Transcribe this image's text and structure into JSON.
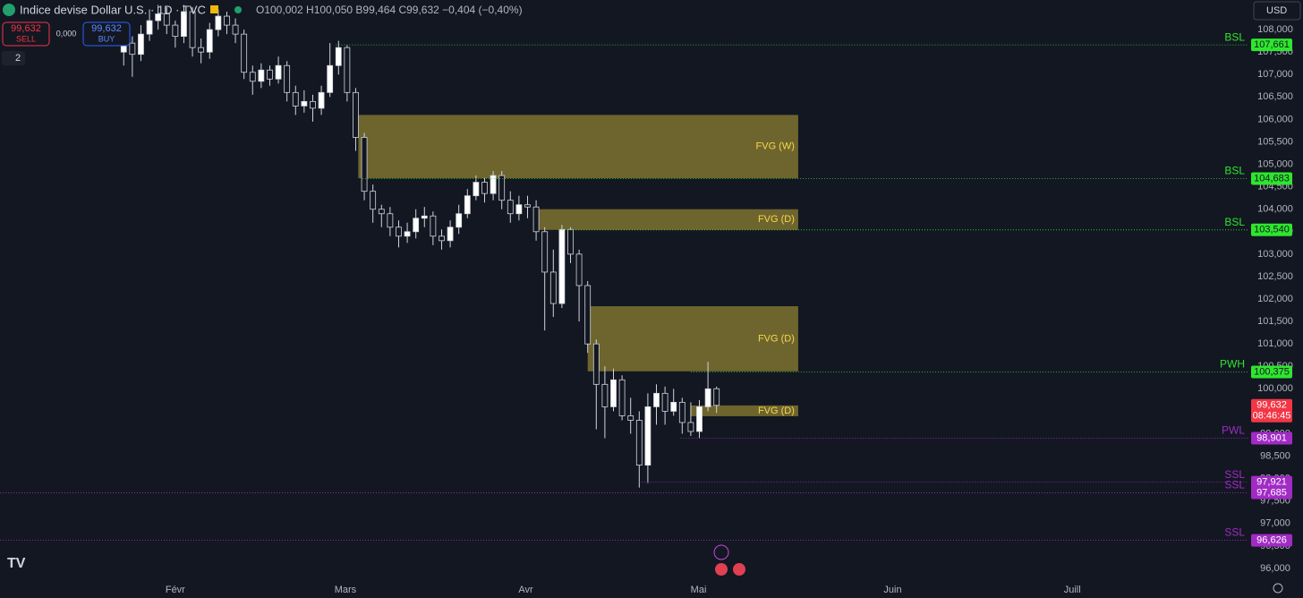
{
  "header": {
    "symbol": "Indice devise Dollar U.S. · 1D · TVC",
    "ohlc": "O100,002 H100,050 B99,464 C99,632 −0,404 (−0,40%)",
    "sell_price": "99,632",
    "sell": "SELL",
    "spread": "0,000",
    "buy_price": "99,632",
    "buy": "BUY",
    "count": "2",
    "currency": "USD",
    "clock": "08:46:45"
  },
  "chart_data": {
    "type": "candlestick",
    "up_color": "#ffffff",
    "down_color": "#131722",
    "xlim": [
      -14.4,
      130.9
    ],
    "ylim": [
      95.74,
      108.66
    ],
    "xticks": [
      {
        "value": 6,
        "label": "Févr"
      },
      {
        "value": 25.8,
        "label": "Mars"
      },
      {
        "value": 46.8,
        "label": "Avr"
      },
      {
        "value": 66.9,
        "label": "Mai"
      },
      {
        "value": 89.5,
        "label": "Juin"
      },
      {
        "value": 110.4,
        "label": "Juill"
      }
    ],
    "yticks": [
      {
        "value": 96,
        "label": "96,000"
      },
      {
        "value": 96.5,
        "label": "96,500"
      },
      {
        "value": 97,
        "label": "97,000"
      },
      {
        "value": 97.5,
        "label": "97,500"
      },
      {
        "value": 98,
        "label": "98,000"
      },
      {
        "value": 98.5,
        "label": "98,500"
      },
      {
        "value": 99,
        "label": "99,000"
      },
      {
        "value": 99.5,
        "label": "99,500"
      },
      {
        "value": 100,
        "label": "100,000"
      },
      {
        "value": 100.5,
        "label": "100,500"
      },
      {
        "value": 101,
        "label": "101,000"
      },
      {
        "value": 101.5,
        "label": "101,500"
      },
      {
        "value": 102,
        "label": "102,000"
      },
      {
        "value": 102.5,
        "label": "102,500"
      },
      {
        "value": 103,
        "label": "103,000"
      },
      {
        "value": 103.5,
        "label": "103,500"
      },
      {
        "value": 104,
        "label": "104,000"
      },
      {
        "value": 104.5,
        "label": "104,500"
      },
      {
        "value": 105,
        "label": "105,000"
      },
      {
        "value": 105.5,
        "label": "105,500"
      },
      {
        "value": 106,
        "label": "106,000"
      },
      {
        "value": 106.5,
        "label": "106,500"
      },
      {
        "value": 107,
        "label": "107,000"
      },
      {
        "value": 107.5,
        "label": "107,500"
      },
      {
        "value": 108,
        "label": "108,000"
      }
    ],
    "open": [
      107.5,
      107.7,
      107.45,
      107.9,
      108.2,
      108.35,
      108.1,
      107.85,
      108.4,
      107.6,
      107.5,
      108.0,
      108.3,
      108.1,
      107.9,
      107.05,
      106.85,
      107.1,
      106.9,
      107.2,
      106.6,
      106.3,
      106.4,
      106.25,
      106.6,
      107.2,
      107.6,
      106.6,
      105.6,
      104.4,
      104.0,
      103.9,
      103.6,
      103.4,
      103.5,
      103.8,
      103.85,
      103.4,
      103.3,
      103.6,
      103.9,
      104.3,
      104.6,
      104.35,
      104.75,
      104.2,
      103.9,
      104.1,
      104.05,
      103.5,
      102.6,
      101.9,
      103.55,
      103.0,
      102.3,
      101.0,
      100.1,
      99.6,
      100.2,
      99.4,
      99.3,
      98.3,
      99.6,
      99.9,
      99.5,
      99.7,
      99.25,
      99.05,
      99.6,
      100.002
    ],
    "high": [
      107.95,
      107.85,
      108.1,
      108.45,
      108.55,
      108.5,
      108.2,
      108.55,
      108.5,
      107.8,
      108.15,
      108.45,
      108.4,
      108.25,
      108.0,
      107.2,
      107.25,
      107.2,
      107.4,
      107.3,
      106.75,
      106.65,
      106.55,
      106.75,
      107.7,
      107.75,
      107.65,
      106.7,
      105.7,
      104.55,
      104.1,
      104.05,
      103.75,
      103.7,
      104.0,
      104.05,
      103.95,
      103.55,
      103.75,
      104.1,
      104.45,
      104.75,
      104.7,
      104.85,
      104.85,
      104.4,
      104.3,
      104.3,
      104.2,
      103.6,
      103.1,
      103.65,
      103.6,
      103.1,
      102.4,
      101.1,
      100.5,
      100.45,
      100.3,
      99.8,
      99.5,
      99.9,
      100.1,
      100.05,
      100.0,
      99.8,
      99.7,
      99.75,
      100.6,
      100.05
    ],
    "low": [
      107.2,
      106.95,
      107.3,
      107.75,
      108.0,
      107.9,
      107.6,
      107.7,
      107.4,
      107.25,
      107.35,
      107.85,
      107.9,
      107.7,
      106.9,
      106.55,
      106.7,
      106.75,
      106.8,
      106.4,
      106.1,
      106.15,
      105.95,
      106.1,
      106.5,
      107.0,
      106.4,
      105.3,
      104.2,
      103.7,
      103.6,
      103.4,
      103.15,
      103.25,
      103.35,
      103.6,
      103.2,
      103.1,
      103.15,
      103.45,
      103.8,
      104.2,
      104.15,
      104.2,
      104.0,
      103.7,
      103.75,
      103.8,
      103.3,
      101.3,
      101.6,
      101.8,
      102.8,
      101.5,
      100.8,
      99.1,
      98.9,
      99.5,
      99.3,
      99.0,
      97.8,
      97.9,
      99.2,
      99.2,
      99.4,
      99.0,
      98.95,
      98.9,
      99.5,
      99.464
    ],
    "close": [
      107.7,
      107.45,
      107.9,
      108.2,
      108.35,
      108.1,
      107.85,
      108.4,
      107.6,
      107.5,
      108.0,
      108.3,
      108.1,
      107.9,
      107.05,
      106.85,
      107.1,
      106.9,
      107.2,
      106.6,
      106.3,
      106.4,
      106.25,
      106.6,
      107.2,
      107.6,
      106.6,
      105.6,
      104.4,
      104.0,
      103.9,
      103.6,
      103.4,
      103.5,
      103.8,
      103.85,
      103.4,
      103.3,
      103.6,
      103.9,
      104.3,
      104.6,
      104.35,
      104.75,
      104.2,
      103.9,
      104.1,
      104.05,
      103.5,
      102.6,
      101.9,
      103.55,
      103.0,
      102.3,
      101.0,
      100.1,
      99.6,
      100.2,
      99.4,
      99.3,
      98.3,
      99.6,
      99.9,
      99.5,
      99.7,
      99.25,
      99.05,
      99.6,
      100.0,
      99.632
    ],
    "last": {
      "value": 99.632,
      "label": "99,632",
      "color": "#f23645"
    },
    "zones": [
      {
        "name": "FVG (W)",
        "top": 106.1,
        "bottom": 104.69,
        "from": 27.3,
        "to": 78.5,
        "color": "#c9b43a"
      },
      {
        "name": "FVG (D)",
        "top": 104.0,
        "bottom": 103.54,
        "from": 48.1,
        "to": 78.5,
        "color": "#c9b43a"
      },
      {
        "name": "FVG (D)",
        "top": 101.84,
        "bottom": 100.39,
        "from": 54,
        "to": 78.5,
        "color": "#c9b43a"
      },
      {
        "name": "FVG (D)",
        "top": 99.63,
        "bottom": 99.39,
        "from": 66,
        "to": 78.5,
        "color": "#c9b43a"
      }
    ],
    "levels": [
      {
        "name": "BSL",
        "value": 107.661,
        "label": "107,661",
        "color": "#2ee62e",
        "from": 24.7
      },
      {
        "name": "BSL",
        "value": 104.683,
        "label": "104,683",
        "color": "#2ee62e",
        "from": 27.8
      },
      {
        "name": "BSL",
        "value": 103.54,
        "label": "103,540",
        "color": "#2ee62e",
        "from": 50.7
      },
      {
        "name": "PWH",
        "value": 100.375,
        "label": "100,375",
        "color": "#2ee62e",
        "from": 66
      },
      {
        "name": "PWL",
        "value": 98.901,
        "label": "98,901",
        "color": "#a12bc4",
        "from": 64.8
      },
      {
        "name": "SSL",
        "value": 97.921,
        "label": "97,921",
        "color": "#a12bc4",
        "from": 60
      },
      {
        "name": "SSL",
        "value": 97.685,
        "label": "97,685",
        "color": "#a12bc4",
        "from": -14.4
      },
      {
        "name": "SSL",
        "value": 96.626,
        "label": "96,626",
        "color": "#a12bc4",
        "from": -14.4
      }
    ]
  }
}
